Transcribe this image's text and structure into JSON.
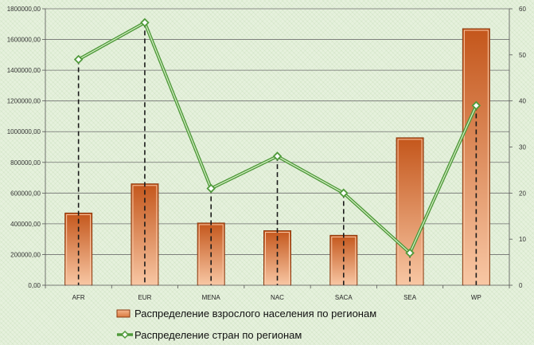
{
  "chart_data": {
    "type": "bar",
    "categories": [
      "AFR",
      "EUR",
      "MENA",
      "NAC",
      "SACA",
      "SEA",
      "WP"
    ],
    "series": [
      {
        "name": "Распределение взрослого населения по регионам",
        "type": "bar",
        "axis": "left",
        "values": [
          470000,
          660000,
          405000,
          355000,
          325000,
          960000,
          1670000
        ]
      },
      {
        "name": "Распределение стран по регионам",
        "type": "line",
        "axis": "right",
        "values": [
          49,
          57,
          21,
          28,
          20,
          7,
          39
        ]
      }
    ],
    "y_left": {
      "min": 0,
      "max": 1800000,
      "step": 200000,
      "tick_labels": [
        "0,00",
        "200000,00",
        "400000,00",
        "600000,00",
        "800000,00",
        "1000000,00",
        "1200000,00",
        "1400000,00",
        "1600000,00",
        "1800000,00"
      ]
    },
    "y_right": {
      "min": 0,
      "max": 60,
      "step": 10,
      "tick_labels": [
        "0",
        "10",
        "20",
        "30",
        "40",
        "50",
        "60"
      ]
    },
    "grid": true,
    "drop_lines": true,
    "legend_position": "bottom",
    "colors": {
      "bar_top": "#c4561b",
      "bar_bottom": "#f8c7a4",
      "bar_border": "#8a3a10",
      "line": "#4f9a3a",
      "line_inner": "#ffffff",
      "grid": "#6f6f6f",
      "drop_line": "#1a1a1a"
    }
  }
}
